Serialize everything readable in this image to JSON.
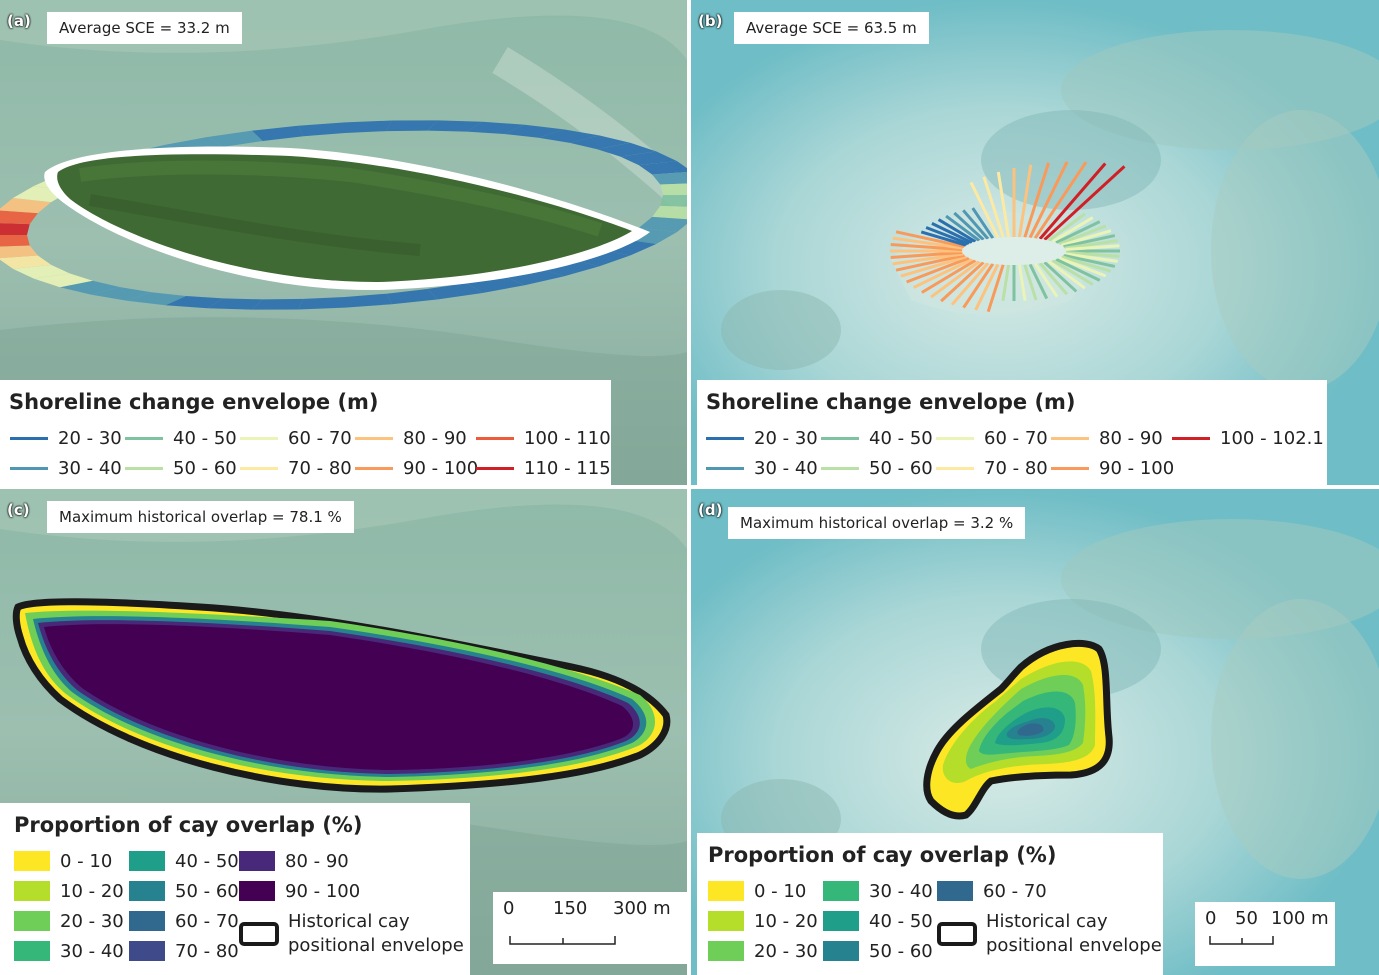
{
  "panels": {
    "a": {
      "label": "(a)",
      "stat": "Average SCE = 33.2 m",
      "legend_title": "Shoreline change envelope (m)",
      "legend": [
        {
          "label": "20 - 30",
          "color": "#2a6fae"
        },
        {
          "label": "30 - 40",
          "color": "#4f97b3"
        },
        {
          "label": "40 - 50",
          "color": "#7fc2a0"
        },
        {
          "label": "50 - 60",
          "color": "#b9e0a5"
        },
        {
          "label": "60 - 70",
          "color": "#eaf4b7"
        },
        {
          "label": "70 - 80",
          "color": "#fde9a2"
        },
        {
          "label": "80 - 90",
          "color": "#fdc27e"
        },
        {
          "label": "90 - 100",
          "color": "#f99a5a"
        },
        {
          "label": "100 - 110",
          "color": "#ef5b3a"
        },
        {
          "label": "110 - 115",
          "color": "#d11f26"
        }
      ]
    },
    "b": {
      "label": "(b)",
      "stat": "Average SCE = 63.5 m",
      "legend_title": "Shoreline change envelope (m)",
      "legend": [
        {
          "label": "20 - 30",
          "color": "#2a6fae"
        },
        {
          "label": "30 - 40",
          "color": "#4f97b3"
        },
        {
          "label": "40 - 50",
          "color": "#7fc2a0"
        },
        {
          "label": "50 - 60",
          "color": "#b9e0a5"
        },
        {
          "label": "60 - 70",
          "color": "#eaf4b7"
        },
        {
          "label": "70 - 80",
          "color": "#fde9a2"
        },
        {
          "label": "80 - 90",
          "color": "#fdc27e"
        },
        {
          "label": "90 - 100",
          "color": "#f99a5a"
        },
        {
          "label": "100 - 102.1",
          "color": "#d11f26"
        }
      ]
    },
    "c": {
      "label": "(c)",
      "stat": "Maximum historical overlap = 78.1 %",
      "legend_title": "Proportion of cay overlap (%)",
      "legend": [
        {
          "label": "0 - 10",
          "color": "#fde725"
        },
        {
          "label": "10 - 20",
          "color": "#b5de2b"
        },
        {
          "label": "20 - 30",
          "color": "#6ece58"
        },
        {
          "label": "30 - 40",
          "color": "#35b779"
        },
        {
          "label": "40 - 50",
          "color": "#1f9e89"
        },
        {
          "label": "50 - 60",
          "color": "#26828e"
        },
        {
          "label": "60 - 70",
          "color": "#31688e"
        },
        {
          "label": "70 - 80",
          "color": "#3e4a89"
        },
        {
          "label": "80 - 90",
          "color": "#482878"
        },
        {
          "label": "90 - 100",
          "color": "#440154"
        }
      ],
      "envelope_label": "Historical cay positional envelope",
      "scale": {
        "t0": "0",
        "t1": "150",
        "t2": "300 m"
      }
    },
    "d": {
      "label": "(d)",
      "stat": "Maximum historical overlap = 3.2 %",
      "legend_title": "Proportion of cay overlap (%)",
      "legend": [
        {
          "label": "0 - 10",
          "color": "#fde725"
        },
        {
          "label": "10 - 20",
          "color": "#b5de2b"
        },
        {
          "label": "20 - 30",
          "color": "#6ece58"
        },
        {
          "label": "30 - 40",
          "color": "#35b779"
        },
        {
          "label": "40 - 50",
          "color": "#1f9e89"
        },
        {
          "label": "50 - 60",
          "color": "#26828e"
        },
        {
          "label": "60 - 70",
          "color": "#31688e"
        }
      ],
      "envelope_label": "Historical cay positional envelope",
      "scale": {
        "t0": "0",
        "t1": "50",
        "t2": "100 m"
      }
    }
  },
  "envelope_line1": "Historical cay",
  "envelope_line2": "positional envelope"
}
